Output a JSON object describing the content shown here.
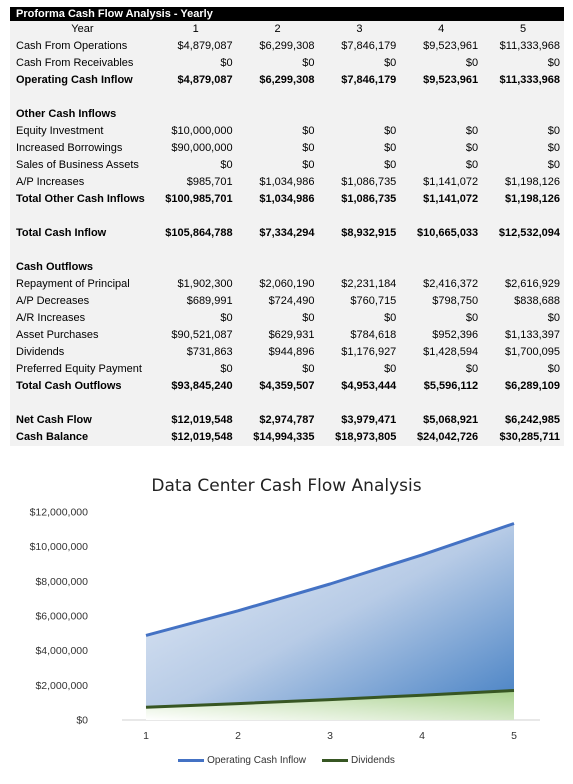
{
  "sheet": {
    "title": "Proforma Cash Flow Analysis - Yearly",
    "header": {
      "label": "Year",
      "years": [
        "1",
        "2",
        "3",
        "4",
        "5"
      ]
    },
    "rows": [
      {
        "label": "Cash From Operations",
        "values": [
          "$4,879,087",
          "$6,299,308",
          "$7,846,179",
          "$9,523,961",
          "$11,333,968"
        ],
        "bold": false
      },
      {
        "label": "Cash From Receivables",
        "values": [
          "$0",
          "$0",
          "$0",
          "$0",
          "$0"
        ],
        "bold": false
      },
      {
        "label": "Operating Cash Inflow",
        "values": [
          "$4,879,087",
          "$6,299,308",
          "$7,846,179",
          "$9,523,961",
          "$11,333,968"
        ],
        "bold": true
      },
      {
        "label": "",
        "values": [
          "",
          "",
          "",
          "",
          ""
        ],
        "bold": false
      },
      {
        "label": "Other Cash Inflows",
        "values": [
          "",
          "",
          "",
          "",
          ""
        ],
        "bold": true
      },
      {
        "label": "Equity Investment",
        "values": [
          "$10,000,000",
          "$0",
          "$0",
          "$0",
          "$0"
        ],
        "bold": false
      },
      {
        "label": "Increased Borrowings",
        "values": [
          "$90,000,000",
          "$0",
          "$0",
          "$0",
          "$0"
        ],
        "bold": false
      },
      {
        "label": "Sales of Business Assets",
        "values": [
          "$0",
          "$0",
          "$0",
          "$0",
          "$0"
        ],
        "bold": false
      },
      {
        "label": "A/P Increases",
        "values": [
          "$985,701",
          "$1,034,986",
          "$1,086,735",
          "$1,141,072",
          "$1,198,126"
        ],
        "bold": false
      },
      {
        "label": "Total Other Cash Inflows",
        "values": [
          "$100,985,701",
          "$1,034,986",
          "$1,086,735",
          "$1,141,072",
          "$1,198,126"
        ],
        "bold": true
      },
      {
        "label": "",
        "values": [
          "",
          "",
          "",
          "",
          ""
        ],
        "bold": false
      },
      {
        "label": "Total Cash Inflow",
        "values": [
          "$105,864,788",
          "$7,334,294",
          "$8,932,915",
          "$10,665,033",
          "$12,532,094"
        ],
        "bold": true
      },
      {
        "label": "",
        "values": [
          "",
          "",
          "",
          "",
          ""
        ],
        "bold": false
      },
      {
        "label": "Cash Outflows",
        "values": [
          "",
          "",
          "",
          "",
          ""
        ],
        "bold": true
      },
      {
        "label": "Repayment of Principal",
        "values": [
          "$1,902,300",
          "$2,060,190",
          "$2,231,184",
          "$2,416,372",
          "$2,616,929"
        ],
        "bold": false
      },
      {
        "label": "A/P Decreases",
        "values": [
          "$689,991",
          "$724,490",
          "$760,715",
          "$798,750",
          "$838,688"
        ],
        "bold": false
      },
      {
        "label": "A/R Increases",
        "values": [
          "$0",
          "$0",
          "$0",
          "$0",
          "$0"
        ],
        "bold": false
      },
      {
        "label": "Asset Purchases",
        "values": [
          "$90,521,087",
          "$629,931",
          "$784,618",
          "$952,396",
          "$1,133,397"
        ],
        "bold": false
      },
      {
        "label": "Dividends",
        "values": [
          "$731,863",
          "$944,896",
          "$1,176,927",
          "$1,428,594",
          "$1,700,095"
        ],
        "bold": false
      },
      {
        "label": "Preferred Equity Payment",
        "values": [
          "$0",
          "$0",
          "$0",
          "$0",
          "$0"
        ],
        "bold": false
      },
      {
        "label": "Total Cash Outflows",
        "values": [
          "$93,845,240",
          "$4,359,507",
          "$4,953,444",
          "$5,596,112",
          "$6,289,109"
        ],
        "bold": true
      },
      {
        "label": "",
        "values": [
          "",
          "",
          "",
          "",
          ""
        ],
        "bold": false
      },
      {
        "label": "Net Cash Flow",
        "values": [
          "$12,019,548",
          "$2,974,787",
          "$3,979,471",
          "$5,068,921",
          "$6,242,985"
        ],
        "bold": true
      },
      {
        "label": "Cash Balance",
        "values": [
          "$12,019,548",
          "$14,994,335",
          "$18,973,805",
          "$24,042,726",
          "$30,285,711"
        ],
        "bold": true
      }
    ]
  },
  "chart_data": {
    "type": "area",
    "title": "Data Center Cash Flow Analysis",
    "x": [
      1,
      2,
      3,
      4,
      5
    ],
    "series": [
      {
        "name": "Operating Cash Inflow",
        "values": [
          4879087,
          6299308,
          7846179,
          9523961,
          11333968
        ],
        "color": "#4472c4"
      },
      {
        "name": "Dividends",
        "values": [
          731863,
          944896,
          1176927,
          1428594,
          1700095
        ],
        "color": "#375623"
      }
    ],
    "ylim": [
      0,
      12000000
    ],
    "yticks": [
      0,
      2000000,
      4000000,
      6000000,
      8000000,
      10000000,
      12000000
    ],
    "ytick_labels": [
      "$0",
      "$2,000,000",
      "$4,000,000",
      "$6,000,000",
      "$8,000,000",
      "$10,000,000",
      "$12,000,000"
    ],
    "xtick_labels": [
      "1",
      "2",
      "3",
      "4",
      "5"
    ],
    "legend": "bottom",
    "grid": false
  }
}
